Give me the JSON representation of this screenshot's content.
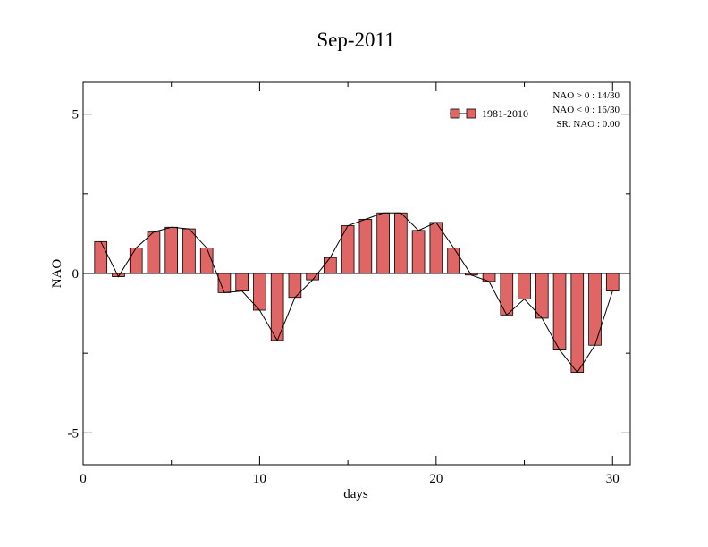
{
  "chart_data": {
    "type": "bar",
    "title": "Sep-2011",
    "xlabel": "days",
    "ylabel": "NAO",
    "xlim": [
      0,
      31
    ],
    "ylim": [
      -6,
      6
    ],
    "x_ticks": [
      0,
      10,
      20,
      30
    ],
    "y_ticks": [
      -5,
      0,
      5
    ],
    "x_tick_labels": [
      "0",
      "10",
      "20",
      "30"
    ],
    "y_tick_labels": [
      "-5",
      "0",
      "5"
    ],
    "grid": false,
    "legend_position": "top-right",
    "bar_color": "#e06666",
    "series": [
      {
        "name": "1981-2010",
        "x": [
          1,
          2,
          3,
          4,
          5,
          6,
          7,
          8,
          9,
          10,
          11,
          12,
          13,
          14,
          15,
          16,
          17,
          18,
          19,
          20,
          21,
          22,
          23,
          24,
          25,
          26,
          27,
          28,
          29,
          30
        ],
        "values": [
          1.0,
          -0.1,
          0.8,
          1.3,
          1.45,
          1.4,
          0.8,
          -0.6,
          -0.55,
          -1.15,
          -2.1,
          -0.75,
          -0.2,
          0.5,
          1.5,
          1.7,
          1.9,
          1.9,
          1.35,
          1.6,
          0.8,
          -0.05,
          -0.25,
          -1.3,
          -0.8,
          -1.4,
          -2.4,
          -3.1,
          -2.25,
          -0.55
        ]
      }
    ],
    "stats": [
      "NAO > 0 : 14/30",
      "NAO < 0 : 16/30",
      "SR. NAO :  0.00"
    ]
  }
}
